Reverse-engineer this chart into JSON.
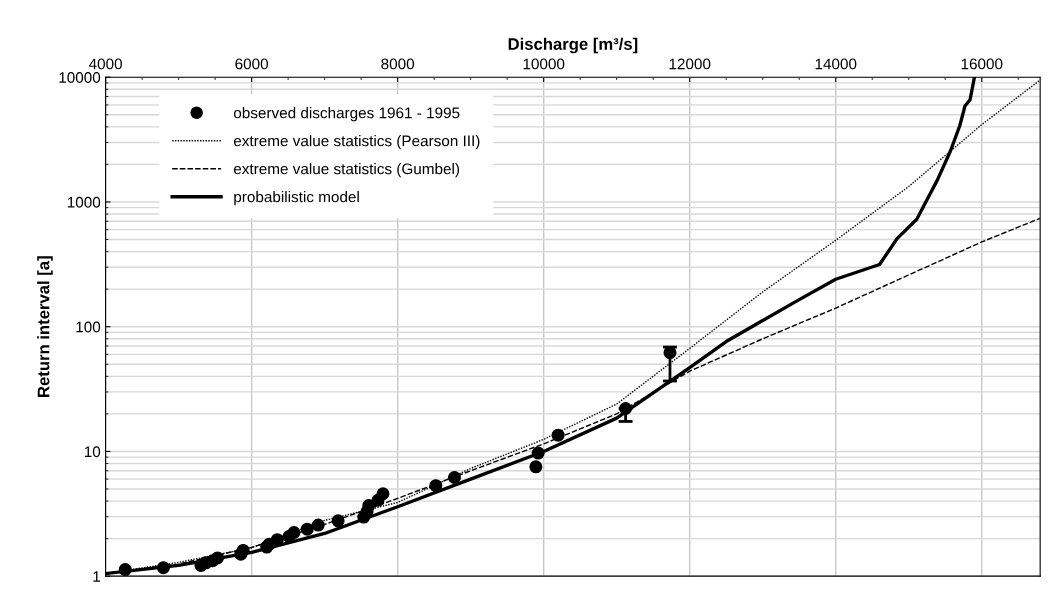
{
  "chart_data": {
    "type": "line",
    "xlabel": "Discharge [m³/s]",
    "ylabel": "Return interval [a]",
    "xlim": [
      4000,
      16800
    ],
    "xticks": [
      4000,
      6000,
      8000,
      10000,
      12000,
      14000,
      16000
    ],
    "ylim": [
      1,
      10000
    ],
    "yticks": [
      1,
      10,
      100,
      1000,
      10000
    ],
    "log": "y",
    "grid": true,
    "legend": "top left",
    "series": [
      {
        "name": "observed discharges 1961 - 1995",
        "type": "scatter",
        "color": "#000000",
        "marker": "circle",
        "x": [
          4269,
          4792,
          5306,
          5375,
          5465,
          5533,
          5852,
          5884,
          6207,
          6239,
          6352,
          6512,
          6580,
          6762,
          6912,
          7185,
          7536,
          7581,
          7604,
          7731,
          7799,
          8523,
          8778,
          9893,
          9925,
          10198,
          11122,
          11730
        ],
        "values": [
          1.13,
          1.17,
          1.22,
          1.28,
          1.33,
          1.4,
          1.5,
          1.61,
          1.71,
          1.8,
          1.96,
          2.08,
          2.24,
          2.38,
          2.57,
          2.78,
          2.98,
          3.3,
          3.68,
          4.06,
          4.58,
          5.32,
          6.18,
          7.53,
          9.7,
          13.5,
          22.1,
          62
        ],
        "errors": [
          null,
          null,
          null,
          null,
          null,
          null,
          null,
          null,
          null,
          null,
          null,
          null,
          null,
          null,
          null,
          null,
          null,
          null,
          null,
          null,
          null,
          null,
          null,
          null,
          null,
          null,
          [
            17.4,
            22.1
          ],
          [
            36.7,
            68.7
          ]
        ]
      },
      {
        "name": "extreme value statistics (Pearson III)",
        "color": "#000000",
        "line_style": "dotted",
        "x": [
          4000,
          5000,
          6000,
          7000,
          8000,
          9000,
          10000,
          11000,
          12000,
          13000,
          14000,
          15000,
          16000,
          16800
        ],
        "values": [
          1.05,
          1.29,
          1.69,
          2.8,
          3.9,
          7.3,
          12.5,
          24,
          67,
          190,
          493,
          1330,
          4170,
          9500
        ]
      },
      {
        "name": "extreme value statistics (Gumbel)",
        "color": "#000000",
        "line_style": "dashed",
        "x": [
          4000,
          5000,
          6000,
          7000,
          8000,
          9000,
          10000,
          11000,
          12000,
          13000,
          14000,
          15000,
          16000,
          16800
        ],
        "values": [
          1.05,
          1.25,
          1.7,
          2.6,
          4.2,
          7.0,
          11.5,
          20,
          44,
          80,
          141,
          260,
          478,
          740
        ]
      },
      {
        "name": "probabilistic model",
        "color": "#000000",
        "line_style": "solid",
        "x": [
          4000,
          5000,
          6000,
          7000,
          8000,
          9000,
          10000,
          11000,
          12000,
          12500,
          13000,
          13500,
          14000,
          14600,
          14840,
          15110,
          15250,
          15390,
          15570,
          15700,
          15770,
          15840,
          15900
        ],
        "values": [
          1.05,
          1.22,
          1.55,
          2.2,
          3.6,
          6.0,
          10,
          18.5,
          47,
          76,
          112,
          165,
          240,
          315,
          508,
          727,
          1040,
          1490,
          2550,
          4100,
          5880,
          6600,
          10000
        ]
      }
    ]
  }
}
